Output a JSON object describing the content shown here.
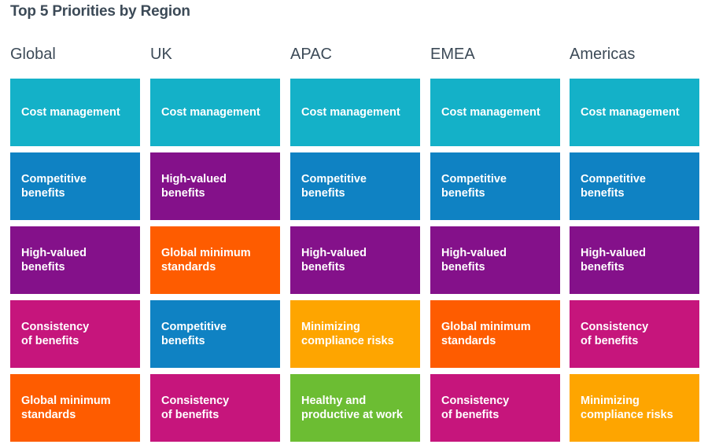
{
  "chart_data": {
    "type": "table",
    "title": "Top 5 Priorities by Region",
    "categories": [
      "Cost management",
      "Competitive\nbenefits",
      "High-valued\nbenefits",
      "Consistency\nof benefits",
      "Global minimum\nstandards",
      "Minimizing\ncompliance risks",
      "Healthy and\nproductive at work"
    ],
    "colors": {
      "Cost management": "#14b1c8",
      "Competitive\nbenefits": "#0f82c3",
      "High-valued\nbenefits": "#84118a",
      "Consistency\nof benefits": "#c6157c",
      "Global minimum\nstandards": "#fe5c00",
      "Minimizing\ncompliance risks": "#fea500",
      "Healthy and\nproductive at work": "#6cbd33"
    },
    "regions": [
      {
        "name": "Global",
        "priorities": [
          "Cost management",
          "Competitive\nbenefits",
          "High-valued\nbenefits",
          "Consistency\nof benefits",
          "Global minimum\nstandards"
        ]
      },
      {
        "name": "UK",
        "priorities": [
          "Cost management",
          "High-valued\nbenefits",
          "Global minimum\nstandards",
          "Competitive\nbenefits",
          "Consistency\nof benefits"
        ]
      },
      {
        "name": "APAC",
        "priorities": [
          "Cost management",
          "Competitive\nbenefits",
          "High-valued\nbenefits",
          "Minimizing\ncompliance risks",
          "Healthy and\nproductive at work"
        ]
      },
      {
        "name": "EMEA",
        "priorities": [
          "Cost management",
          "Competitive\nbenefits",
          "High-valued\nbenefits",
          "Global minimum\nstandards",
          "Consistency\nof benefits"
        ]
      },
      {
        "name": "Americas",
        "priorities": [
          "Cost management",
          "Competitive\nbenefits",
          "High-valued\nbenefits",
          "Consistency\nof benefits",
          "Minimizing\ncompliance risks"
        ]
      }
    ]
  }
}
